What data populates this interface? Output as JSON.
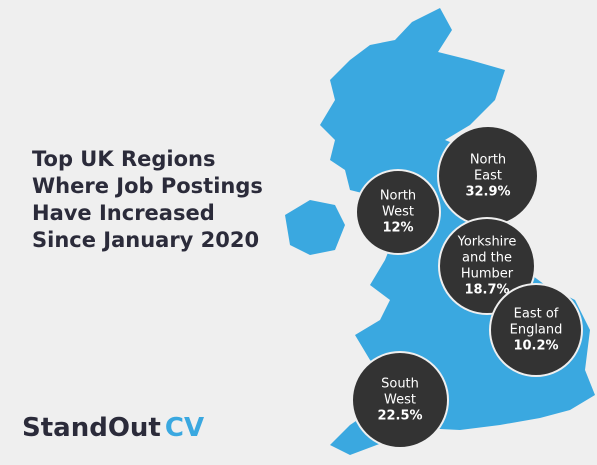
{
  "title": [
    "Top UK Regions",
    "Where Job Postings",
    "Have Increased",
    "Since January 2020"
  ],
  "logo": {
    "main": "StandOut",
    "accent": "CV"
  },
  "regions": [
    {
      "lines": [
        "North",
        "East"
      ],
      "value": "32.9%"
    },
    {
      "lines": [
        "North",
        "West"
      ],
      "value": "12%"
    },
    {
      "lines": [
        "Yorkshire",
        "and the",
        "Humber"
      ],
      "value": "18.7%"
    },
    {
      "lines": [
        "East of",
        "England"
      ],
      "value": "10.2%"
    },
    {
      "lines": [
        "South",
        "West"
      ],
      "value": "22.5%"
    }
  ]
}
